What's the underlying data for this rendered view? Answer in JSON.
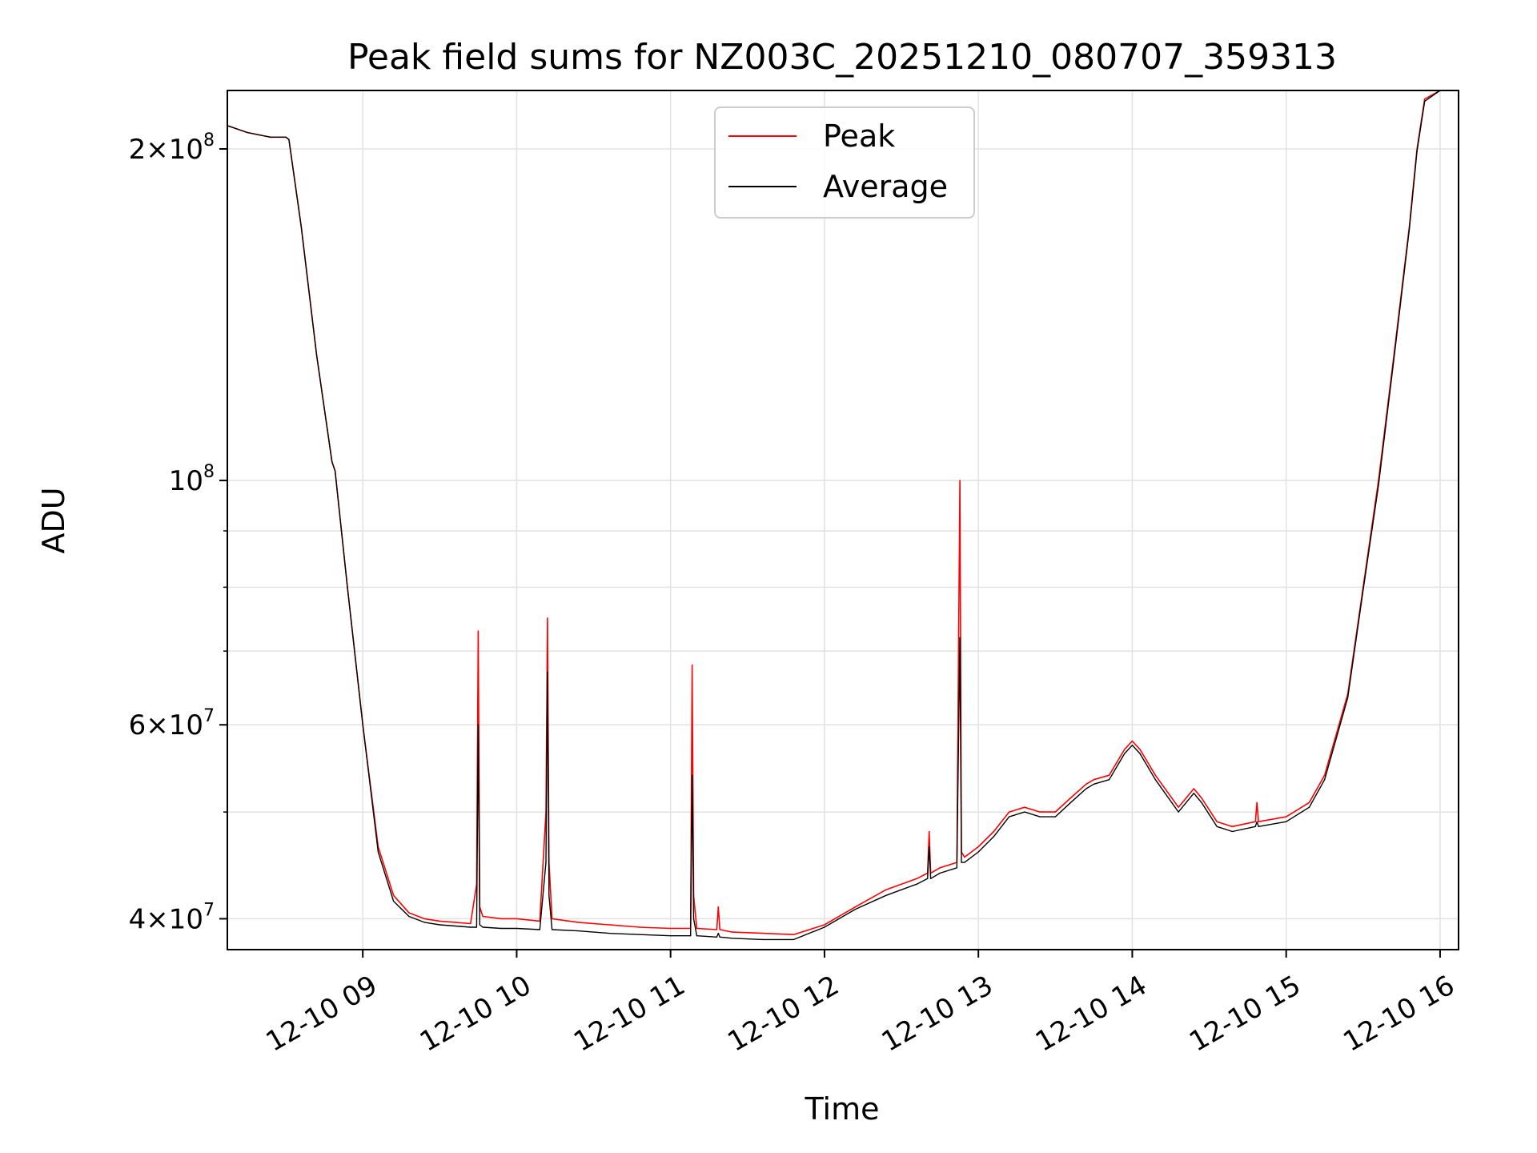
{
  "chart_data": {
    "type": "line",
    "title": "Peak field sums for NZ003C_20251210_080707_359313",
    "xlabel": "Time",
    "ylabel": "ADU",
    "yscale": "log",
    "xlim": [
      8.12,
      16.12
    ],
    "ylim": [
      37500000,
      226000000
    ],
    "x_unit": "hour of 2025-12-10",
    "grid": true,
    "legend_position": "top-center",
    "x_ticks": [
      {
        "value": 9,
        "label": "12-10 09"
      },
      {
        "value": 10,
        "label": "12-10 10"
      },
      {
        "value": 11,
        "label": "12-10 11"
      },
      {
        "value": 12,
        "label": "12-10 12"
      },
      {
        "value": 13,
        "label": "12-10 13"
      },
      {
        "value": 14,
        "label": "12-10 14"
      },
      {
        "value": 15,
        "label": "12-10 15"
      },
      {
        "value": 16,
        "label": "12-10 16"
      }
    ],
    "y_major_ticks": [
      {
        "value": 40000000,
        "mantissa": "4×10",
        "exponent": "7"
      },
      {
        "value": 60000000,
        "mantissa": "6×10",
        "exponent": "7"
      },
      {
        "value": 100000000,
        "mantissa": "10",
        "exponent": "8"
      },
      {
        "value": 200000000,
        "mantissa": "2×10",
        "exponent": "8"
      }
    ],
    "y_minor_grid": [
      50000000,
      70000000,
      80000000,
      90000000
    ],
    "series": [
      {
        "name": "Peak",
        "color": "#ff0000",
        "x": [
          8.12,
          8.25,
          8.4,
          8.5,
          8.52,
          8.6,
          8.7,
          8.8,
          8.82,
          8.9,
          9.0,
          9.1,
          9.2,
          9.3,
          9.4,
          9.5,
          9.6,
          9.7,
          9.74,
          9.75,
          9.76,
          9.78,
          9.9,
          10.0,
          10.15,
          10.19,
          10.2,
          10.21,
          10.23,
          10.4,
          10.6,
          10.8,
          11.0,
          11.13,
          11.14,
          11.15,
          11.17,
          11.3,
          11.31,
          11.32,
          11.4,
          11.6,
          11.8,
          12.0,
          12.2,
          12.4,
          12.5,
          12.6,
          12.67,
          12.68,
          12.69,
          12.75,
          12.86,
          12.88,
          12.89,
          12.91,
          13.0,
          13.1,
          13.2,
          13.3,
          13.4,
          13.5,
          13.6,
          13.7,
          13.75,
          13.85,
          13.95,
          14.0,
          14.05,
          14.15,
          14.3,
          14.4,
          14.45,
          14.55,
          14.65,
          14.8,
          14.81,
          14.82,
          15.0,
          15.15,
          15.25,
          15.4,
          15.5,
          15.6,
          15.7,
          15.8,
          15.85,
          15.9,
          16.0,
          16.12
        ],
        "y": [
          210000000,
          207000000,
          205000000,
          205000000,
          204000000,
          170000000,
          130000000,
          104000000,
          102000000,
          80000000,
          60000000,
          46500000,
          42000000,
          40500000,
          40000000,
          39800000,
          39700000,
          39600000,
          43000000,
          73000000,
          41000000,
          40200000,
          40000000,
          40000000,
          39800000,
          50000000,
          75000000,
          45000000,
          40000000,
          39700000,
          39500000,
          39300000,
          39200000,
          39200000,
          68000000,
          42000000,
          39200000,
          39100000,
          41000000,
          39100000,
          38900000,
          38800000,
          38700000,
          39500000,
          41000000,
          42500000,
          43000000,
          43500000,
          44000000,
          48000000,
          44000000,
          44500000,
          45000000,
          100000000,
          46000000,
          45500000,
          46500000,
          48000000,
          50000000,
          50500000,
          50000000,
          50000000,
          51500000,
          53000000,
          53500000,
          54000000,
          57000000,
          58000000,
          57000000,
          54000000,
          50500000,
          52500000,
          51500000,
          49000000,
          48500000,
          49000000,
          51000000,
          49000000,
          49500000,
          51000000,
          54000000,
          64000000,
          80000000,
          100000000,
          130000000,
          170000000,
          200000000,
          222000000,
          226000000,
          226000000
        ]
      },
      {
        "name": "Average",
        "color": "#000000",
        "x": [
          8.12,
          8.25,
          8.4,
          8.5,
          8.52,
          8.6,
          8.7,
          8.8,
          8.82,
          8.9,
          9.0,
          9.1,
          9.2,
          9.3,
          9.4,
          9.5,
          9.6,
          9.7,
          9.74,
          9.75,
          9.76,
          9.78,
          9.9,
          10.0,
          10.15,
          10.19,
          10.2,
          10.21,
          10.23,
          10.4,
          10.6,
          10.8,
          11.0,
          11.13,
          11.14,
          11.15,
          11.17,
          11.3,
          11.31,
          11.32,
          11.4,
          11.6,
          11.8,
          12.0,
          12.2,
          12.4,
          12.5,
          12.6,
          12.67,
          12.68,
          12.69,
          12.75,
          12.86,
          12.88,
          12.89,
          12.91,
          13.0,
          13.1,
          13.2,
          13.3,
          13.4,
          13.5,
          13.6,
          13.7,
          13.75,
          13.85,
          13.95,
          14.0,
          14.05,
          14.15,
          14.3,
          14.4,
          14.45,
          14.55,
          14.65,
          14.8,
          14.81,
          14.82,
          15.0,
          15.15,
          15.25,
          15.4,
          15.5,
          15.6,
          15.7,
          15.8,
          15.85,
          15.9,
          16.0,
          16.12
        ],
        "y": [
          210000000,
          207000000,
          205000000,
          205000000,
          204000000,
          170000000,
          130000000,
          104000000,
          102000000,
          80000000,
          60000000,
          46000000,
          41500000,
          40200000,
          39700000,
          39500000,
          39400000,
          39300000,
          39300000,
          60000000,
          39500000,
          39300000,
          39200000,
          39200000,
          39100000,
          45000000,
          67000000,
          42000000,
          39100000,
          39000000,
          38800000,
          38700000,
          38600000,
          38600000,
          54000000,
          40000000,
          38600000,
          38500000,
          38800000,
          38500000,
          38400000,
          38300000,
          38300000,
          39300000,
          40800000,
          42000000,
          42500000,
          43000000,
          43500000,
          46500000,
          43500000,
          44000000,
          44500000,
          72000000,
          45000000,
          45000000,
          46000000,
          47500000,
          49500000,
          50000000,
          49500000,
          49500000,
          51000000,
          52500000,
          53000000,
          53500000,
          56500000,
          57500000,
          56500000,
          53500000,
          50000000,
          52000000,
          51000000,
          48500000,
          48000000,
          48500000,
          49000000,
          48500000,
          49000000,
          50500000,
          53500000,
          63500000,
          79500000,
          99000000,
          129000000,
          169000000,
          199000000,
          221000000,
          226000000,
          226000000
        ]
      }
    ]
  }
}
